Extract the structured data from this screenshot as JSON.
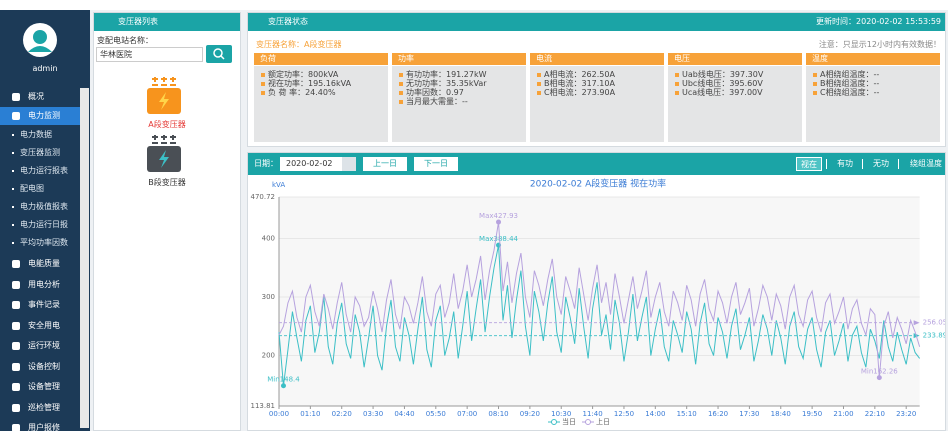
{
  "sidebar": {
    "user": "admin",
    "menu_top": [
      "概况",
      "电力监测"
    ],
    "submenu": [
      "电力数据",
      "变压器监测",
      "电力运行报表",
      "配电图",
      "电力极值报表",
      "电力运行日报",
      "平均功率因数"
    ],
    "menu_bottom": [
      "电能质量",
      "用电分析",
      "事件记录",
      "安全用电",
      "运行环境",
      "设备控制",
      "设备管理",
      "巡检管理",
      "用户报修"
    ]
  },
  "station_panel": {
    "title": "变压器列表",
    "search_label": "变配电站名称：",
    "search_value": "华林医院",
    "transformers": [
      {
        "label": "A段变压器",
        "color": "#f7941d"
      },
      {
        "label": "B段变压器",
        "color": "#4a4f55"
      }
    ],
    "selected_transformer": 0
  },
  "status_panel": {
    "title": "变压器状态",
    "update_time": "更新时间：2020-02-02 15:53:59",
    "name": "变压器名称：A段变压器",
    "notice": "注意：只显示12小时内有效数据！",
    "cards": [
      {
        "title": "负荷",
        "lines": [
          "额定功率：800kVA",
          "视在功率：195.16kVA",
          "负 荷 率：24.40%"
        ]
      },
      {
        "title": "功率",
        "lines": [
          "有功功率：191.27kW",
          "无功功率：35.35kVar",
          "功率因数：0.97",
          "当月最大需量：--"
        ]
      },
      {
        "title": "电流",
        "lines": [
          "A相电流：262.50A",
          "B相电流：317.10A",
          "C相电流：273.90A"
        ]
      },
      {
        "title": "电压",
        "lines": [
          "Uab线电压：397.30V",
          "Ubc线电压：395.60V",
          "Uca线电压：397.00V"
        ]
      },
      {
        "title": "温度",
        "lines": [
          "A相绕组温度：--",
          "B相绕组温度：--",
          "C相绕组温度：--"
        ]
      }
    ]
  },
  "toolbar": {
    "date_label": "日期：",
    "date": "2020-02-02",
    "prev": "上一日",
    "next": "下一日",
    "tabs": [
      "视在",
      "有功",
      "无功",
      "绕组温度"
    ],
    "active_tab": 0
  },
  "chart_data": {
    "type": "line",
    "title": "2020-02-02  A段变压器  视在功率",
    "y_label": "kVA",
    "ylim": [
      113.81,
      470.72
    ],
    "yticks": [
      113.81,
      200,
      300,
      400,
      470.72
    ],
    "grid": true,
    "categories": [
      "00:00",
      null,
      null,
      null,
      null,
      null,
      null,
      "01:10",
      null,
      null,
      null,
      null,
      null,
      null,
      "02:20",
      null,
      null,
      null,
      null,
      null,
      null,
      "03:30",
      null,
      null,
      null,
      null,
      null,
      null,
      "04:40",
      null,
      null,
      null,
      null,
      null,
      null,
      "05:50",
      null,
      null,
      null,
      null,
      null,
      null,
      "07:00",
      null,
      null,
      null,
      null,
      null,
      null,
      "08:10",
      null,
      null,
      null,
      null,
      null,
      null,
      "09:20",
      null,
      null,
      null,
      null,
      null,
      null,
      "10:30",
      null,
      null,
      null,
      null,
      null,
      null,
      "11:40",
      null,
      null,
      null,
      null,
      null,
      null,
      "12:50",
      null,
      null,
      null,
      null,
      null,
      null,
      "14:00",
      null,
      null,
      null,
      null,
      null,
      null,
      "15:10",
      null,
      null,
      null,
      null,
      null,
      null,
      "16:20",
      null,
      null,
      null,
      null,
      null,
      null,
      "17:30",
      null,
      null,
      null,
      null,
      null,
      null,
      "18:40",
      null,
      null,
      null,
      null,
      null,
      null,
      "19:50",
      null,
      null,
      null,
      null,
      null,
      null,
      "21:00",
      null,
      null,
      null,
      null,
      null,
      null,
      "22:10",
      null,
      null,
      null,
      null,
      null,
      null,
      "23:20",
      null,
      null,
      null
    ],
    "series": [
      {
        "name": "当日",
        "color": "#3cbfc6",
        "average": 233.89,
        "mark_points": [
          {
            "value": 388.44,
            "label": "Max388.44"
          },
          {
            "value": 148.4,
            "label": "Min148.4"
          }
        ],
        "values": [
          240,
          148.4,
          210,
          275,
          230,
          190,
          260,
          285,
          205,
          240,
          300,
          215,
          185,
          255,
          290,
          220,
          195,
          270,
          240,
          180,
          230,
          285,
          200,
          175,
          250,
          295,
          215,
          190,
          265,
          235,
          185,
          245,
          300,
          210,
          180,
          260,
          285,
          200,
          230,
          275,
          195,
          250,
          310,
          225,
          280,
          330,
          240,
          300,
          350,
          388.44,
          260,
          320,
          230,
          295,
          345,
          250,
          200,
          310,
          275,
          225,
          290,
          335,
          240,
          205,
          300,
          265,
          220,
          315,
          250,
          195,
          280,
          325,
          235,
          270,
          210,
          295,
          255,
          190,
          240,
          305,
          225,
          265,
          300,
          200,
          245,
          280,
          215,
          190,
          260,
          235,
          205,
          275,
          245,
          185,
          255,
          290,
          220,
          200,
          265,
          240,
          195,
          250,
          280,
          210,
          235,
          265,
          190,
          225,
          270,
          245,
          200,
          260,
          230,
          185,
          250,
          275,
          215,
          195,
          245,
          265,
          210,
          180,
          240,
          260,
          200,
          225,
          255,
          190,
          235,
          250,
          205,
          180,
          245,
          225,
          195,
          260,
          215,
          190,
          240,
          210,
          185,
          230,
          205,
          195
        ]
      },
      {
        "name": "上日",
        "color": "#b6a2de",
        "average": 256.05,
        "mark_points": [
          {
            "value": 427.93,
            "label": "Max427.93"
          },
          {
            "value": 162.26,
            "label": "Min162.26"
          }
        ],
        "values": [
          235,
          250,
          290,
          310,
          265,
          240,
          300,
          320,
          275,
          250,
          305,
          280,
          245,
          290,
          325,
          270,
          240,
          300,
          285,
          250,
          265,
          310,
          280,
          240,
          295,
          330,
          270,
          245,
          300,
          285,
          255,
          290,
          335,
          275,
          250,
          305,
          320,
          265,
          290,
          340,
          280,
          310,
          355,
          300,
          330,
          370,
          295,
          345,
          380,
          427.93,
          310,
          360,
          290,
          340,
          375,
          300,
          265,
          345,
          320,
          285,
          330,
          365,
          300,
          270,
          335,
          310,
          280,
          350,
          305,
          260,
          315,
          355,
          290,
          325,
          270,
          340,
          300,
          255,
          295,
          335,
          280,
          310,
          345,
          265,
          300,
          325,
          275,
          250,
          310,
          290,
          260,
          320,
          295,
          250,
          305,
          330,
          280,
          260,
          310,
          290,
          255,
          300,
          325,
          270,
          290,
          315,
          250,
          280,
          320,
          300,
          260,
          305,
          285,
          245,
          300,
          320,
          270,
          250,
          295,
          310,
          265,
          240,
          290,
          305,
          255,
          275,
          300,
          245,
          280,
          295,
          255,
          235,
          280,
          270,
          162.26,
          250,
          275,
          230,
          265,
          245,
          220,
          260,
          240,
          215
        ]
      }
    ]
  }
}
